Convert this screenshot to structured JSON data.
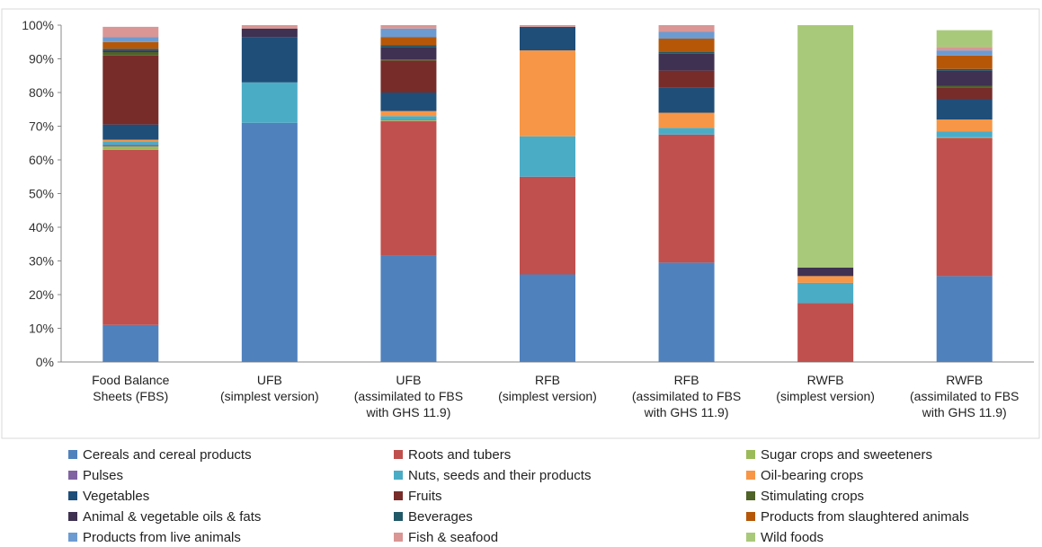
{
  "chart_data": {
    "type": "bar",
    "stacked": true,
    "title": "",
    "xlabel": "",
    "ylabel": "",
    "ylim": [
      0,
      100
    ],
    "yticks": [
      "0%",
      "10%",
      "20%",
      "30%",
      "40%",
      "50%",
      "60%",
      "70%",
      "80%",
      "90%",
      "100%"
    ],
    "grid": false,
    "legend_position": "bottom",
    "categories": [
      [
        "Food Balance",
        "Sheets (FBS)"
      ],
      [
        "UFB",
        "(simplest version)"
      ],
      [
        "UFB",
        "(assimilated to FBS",
        "with GHS 11.9)"
      ],
      [
        "RFB",
        "(simplest version)"
      ],
      [
        "RFB",
        "(assimilated to FBS",
        "with GHS 11.9)"
      ],
      [
        "RWFB",
        "(simplest version)"
      ],
      [
        "RWFB",
        "(assimilated to FBS",
        "with GHS 11.9)"
      ]
    ],
    "series": [
      {
        "name": "Cereals and cereal products",
        "color": "#4F81BD",
        "values": [
          11,
          71,
          31.5,
          26,
          29.5,
          0,
          25.5
        ]
      },
      {
        "name": "Roots and tubers",
        "color": "#C0504D",
        "values": [
          52,
          0,
          40,
          29,
          38,
          17.5,
          41
        ]
      },
      {
        "name": "Sugar crops and sweeteners",
        "color": "#9BBB59",
        "values": [
          1,
          0,
          0.3,
          0,
          0,
          0,
          0.2
        ]
      },
      {
        "name": "Pulses",
        "color": "#8064A2",
        "values": [
          0.5,
          0,
          0.2,
          0,
          0,
          0,
          0
        ]
      },
      {
        "name": "Nuts, seeds and their products",
        "color": "#4BACC6",
        "values": [
          1,
          12,
          1,
          12,
          2,
          6,
          1.8
        ]
      },
      {
        "name": "Oil-bearing crops",
        "color": "#F79646",
        "values": [
          0.5,
          0,
          1.5,
          25.5,
          4.5,
          2,
          3.5
        ]
      },
      {
        "name": "Vegetables",
        "color": "#1F4E79",
        "values": [
          4.5,
          13.5,
          5.5,
          7,
          7.5,
          0,
          6
        ]
      },
      {
        "name": "Fruits",
        "color": "#772C2A",
        "values": [
          20.5,
          0,
          9.5,
          0,
          5,
          0,
          3.5
        ]
      },
      {
        "name": "Stimulating crops",
        "color": "#4F6228",
        "values": [
          1,
          0,
          0.3,
          0,
          0,
          0,
          0.5
        ]
      },
      {
        "name": "Animal & vegetable oils & fats",
        "color": "#3F3151",
        "values": [
          0.5,
          2.5,
          3.7,
          0,
          5,
          2.5,
          4.5
        ]
      },
      {
        "name": "Beverages",
        "color": "#215968",
        "values": [
          0.5,
          0,
          0.5,
          0,
          0.5,
          0,
          0.5
        ]
      },
      {
        "name": "Products from slaughtered animals",
        "color": "#B65708",
        "values": [
          2,
          0,
          2.5,
          0,
          4,
          0,
          4
        ]
      },
      {
        "name": "Products from live animals",
        "color": "#6C9BD2",
        "values": [
          1.5,
          0,
          2.5,
          0,
          2,
          0,
          1.5
        ]
      },
      {
        "name": "Fish & seafood",
        "color": "#D99694",
        "values": [
          3,
          1,
          1,
          0.5,
          2,
          0,
          1
        ]
      },
      {
        "name": "Wild foods",
        "color": "#A9C97A",
        "values": [
          0,
          0,
          0,
          0,
          0,
          72,
          5
        ]
      }
    ]
  }
}
